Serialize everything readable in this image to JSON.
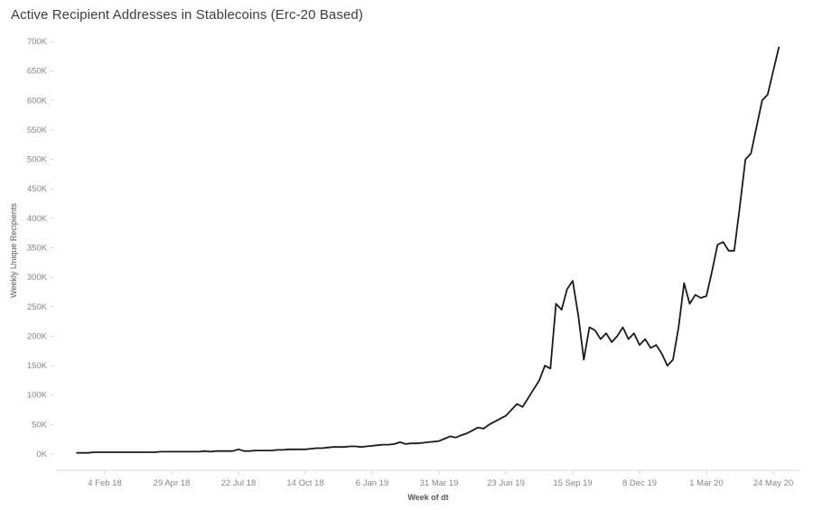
{
  "page": {
    "background": "#ffffff"
  },
  "header": {
    "title": "Active Recipient Addresses in Stablecoins (Erc-20 Based)"
  },
  "chart_data": {
    "type": "line",
    "title": "Active Recipient Addresses in Stablecoins (Erc-20 Based)",
    "xlabel": "Week of dt",
    "ylabel": "Weekly Unique Recipients",
    "x_unit": "week",
    "series_name": "Weekly Unique Recipients",
    "values_unit": "thousands",
    "x_tick_labels": [
      "4 Feb 18",
      "29 Apr 18",
      "22 Jul 18",
      "14 Oct 18",
      "6 Jan 19",
      "31 Mar 19",
      "23 Jun 19",
      "15 Sep 19",
      "8 Dec 19",
      "1 Mar 20",
      "24 May 20"
    ],
    "x_tick_indices": [
      5,
      17,
      29,
      41,
      53,
      65,
      77,
      89,
      101,
      113,
      125
    ],
    "y_tick_labels": [
      "0K",
      "50K",
      "100K",
      "150K",
      "200K",
      "250K",
      "300K",
      "350K",
      "400K",
      "450K",
      "500K",
      "550K",
      "600K",
      "650K",
      "700K"
    ],
    "y_tick_values": [
      0,
      50,
      100,
      150,
      200,
      250,
      300,
      350,
      400,
      450,
      500,
      550,
      600,
      650,
      700
    ],
    "ylim": [
      0,
      700
    ],
    "grid": "off",
    "legend": "none",
    "line_color": "#1a1a1a",
    "axis_text_color": "#858585",
    "axis_line_color": "#d7d7d7",
    "values": [
      2,
      2,
      2,
      3,
      3,
      3,
      3,
      3,
      3,
      3,
      3,
      3,
      3,
      3,
      3,
      4,
      4,
      4,
      4,
      4,
      4,
      4,
      4,
      5,
      4,
      5,
      5,
      5,
      5,
      8,
      5,
      5,
      6,
      6,
      6,
      6,
      7,
      7,
      8,
      8,
      8,
      8,
      9,
      10,
      10,
      11,
      12,
      12,
      12,
      13,
      13,
      12,
      13,
      14,
      15,
      16,
      16,
      17,
      20,
      17,
      18,
      18,
      19,
      20,
      21,
      22,
      26,
      30,
      28,
      32,
      35,
      40,
      45,
      43,
      50,
      55,
      60,
      65,
      75,
      85,
      80,
      95,
      110,
      125,
      150,
      145,
      255,
      245,
      280,
      294,
      235,
      160,
      215,
      210,
      195,
      205,
      190,
      200,
      215,
      195,
      205,
      185,
      195,
      180,
      185,
      170,
      150,
      160,
      215,
      290,
      255,
      270,
      265,
      268,
      310,
      355,
      360,
      345,
      345,
      420,
      500,
      510,
      555,
      600,
      610,
      650,
      690
    ]
  }
}
